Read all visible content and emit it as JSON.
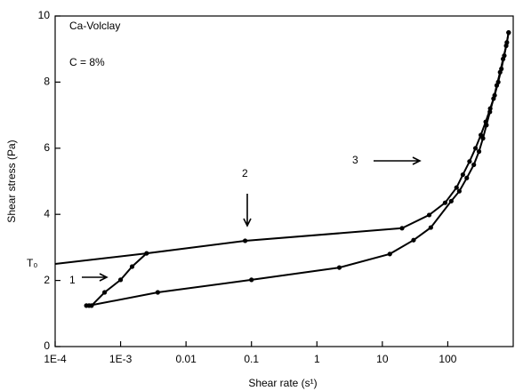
{
  "chart_data": {
    "type": "line",
    "x_label": "Shear rate (s¹)",
    "y_label": "Shear stress (Pa)",
    "x_log": true,
    "xlim": [
      0.0001,
      1000
    ],
    "ylim": [
      0,
      10
    ],
    "xticks": [
      {
        "value": 0.0001,
        "label": "1E-4"
      },
      {
        "value": 0.001,
        "label": "1E-3"
      },
      0.01,
      0.1,
      1,
      10,
      100
    ],
    "yticks": [
      0,
      2,
      4,
      6,
      8,
      10
    ],
    "annotations": [
      "Ca-Volclay",
      "C = 8%",
      "1",
      "2",
      "3",
      "T₀"
    ],
    "series": [
      {
        "color": "#000000",
        "markers": true,
        "x": [
          0.0003,
          0.00036,
          0.00057,
          0.001,
          0.0015,
          0.0025,
          0.08,
          20,
          52,
          91,
          136,
          170,
          215,
          265,
          320,
          380,
          445,
          520,
          590,
          660,
          730,
          800,
          850
        ],
        "values": [
          1.24,
          1.24,
          1.64,
          2.02,
          2.42,
          2.82,
          3.2,
          3.58,
          3.98,
          4.35,
          4.81,
          5.2,
          5.6,
          6.0,
          6.4,
          6.8,
          7.2,
          7.6,
          8.0,
          8.4,
          8.8,
          9.2,
          9.5
        ]
      },
      {
        "color": "#000000",
        "markers": true,
        "x": [
          850,
          780,
          700,
          630,
          560,
          500,
          440,
          390,
          345,
          300,
          250,
          195,
          150,
          113,
          55,
          30,
          13,
          2.2,
          0.1,
          0.0037,
          0.00033
        ],
        "values": [
          9.5,
          9.1,
          8.7,
          8.3,
          7.9,
          7.5,
          7.1,
          6.7,
          6.3,
          5.9,
          5.5,
          5.1,
          4.7,
          4.4,
          3.6,
          3.22,
          2.8,
          2.39,
          2.02,
          1.64,
          1.24
        ]
      },
      {
        "color": "#000000",
        "markers": false,
        "x": [
          0.0001,
          0.0025
        ],
        "values": [
          2.5,
          2.82
        ]
      }
    ]
  }
}
